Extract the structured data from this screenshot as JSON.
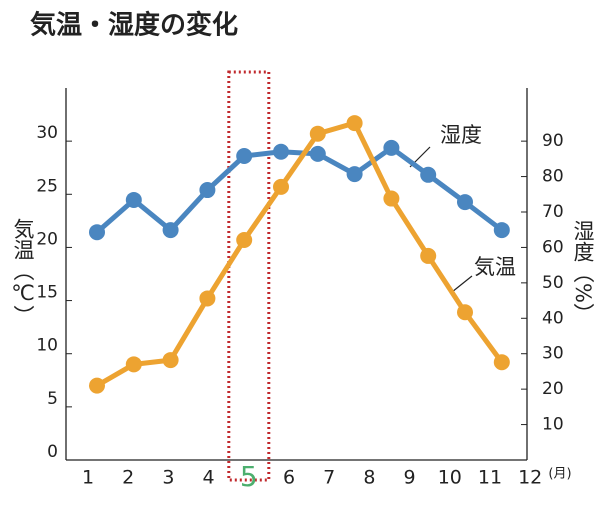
{
  "chart_data": {
    "type": "line",
    "title": "気温・湿度の変化",
    "categories": [
      "1",
      "2",
      "3",
      "4",
      "5",
      "6",
      "7",
      "8",
      "9",
      "10",
      "11",
      "12"
    ],
    "xlabel": "(月)",
    "ylabel": "気温（℃）",
    "y2label": "湿度（%）",
    "highlight": "5",
    "highlight_color": "#4caf6e",
    "box_color": "#c0282c",
    "ylim": [
      0,
      35
    ],
    "yticks": [
      0,
      5,
      10,
      15,
      20,
      25,
      30
    ],
    "y2lim": [
      0,
      105
    ],
    "y2ticks": [
      10,
      20,
      30,
      40,
      50,
      60,
      70,
      80,
      90
    ],
    "grid": false,
    "series": [
      {
        "name": "湿度",
        "color": "#4a86c0",
        "axis": "y2",
        "values": [
          64.3,
          73.4,
          64.9,
          76.2,
          85.8,
          87.0,
          86.4,
          80.7,
          88.1,
          80.5,
          72.8,
          64.9
        ]
      },
      {
        "name": "気温",
        "color": "#eda331",
        "axis": "y",
        "values": [
          7.0,
          9.0,
          9.4,
          15.2,
          20.7,
          25.7,
          30.7,
          31.7,
          24.6,
          19.2,
          13.9,
          9.2
        ]
      }
    ]
  }
}
